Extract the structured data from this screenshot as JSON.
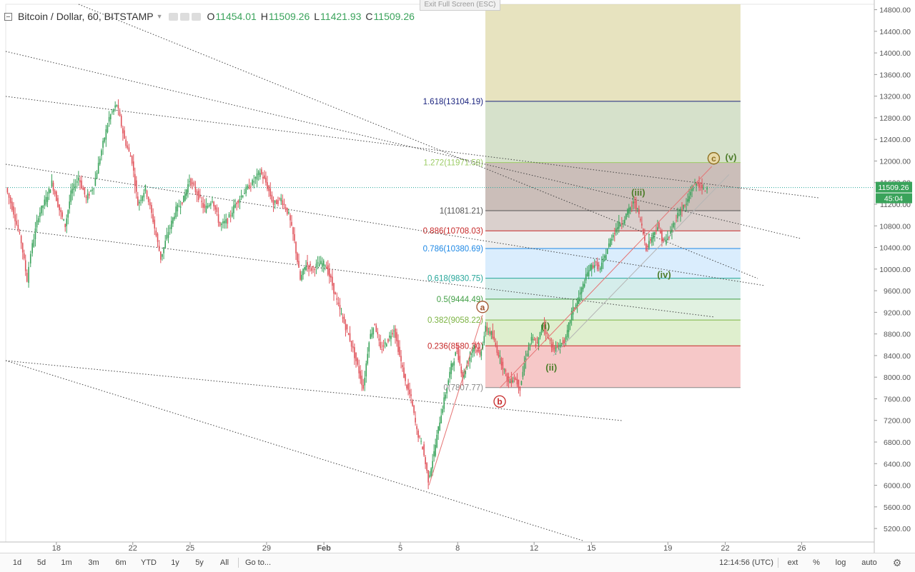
{
  "header": {
    "symbol": "Bitcoin / Dollar, 60, BITSTAMP",
    "open_label": "O",
    "open": "11454.01",
    "high_label": "H",
    "high": "11509.26",
    "low_label": "L",
    "low": "11421.93",
    "close_label": "C",
    "close": "11509.26"
  },
  "exit_fullscreen": "Exit Full Screen (ESC)",
  "price_tag": {
    "price": "11509.26",
    "countdown": "45:04"
  },
  "timeframes": [
    "1d",
    "5d",
    "1m",
    "3m",
    "6m",
    "YTD",
    "1y",
    "5y",
    "All"
  ],
  "goto_label": "Go to...",
  "time": "12:14:56 (UTC)",
  "options": [
    "ext",
    "%",
    "log",
    "auto"
  ],
  "settings_icon": "gear-icon",
  "chart_data": {
    "type": "line",
    "ylim": [
      4950,
      14900
    ],
    "y_ticks": [
      5200,
      5600,
      6000,
      6400,
      6800,
      7200,
      7600,
      8000,
      8400,
      8800,
      9200,
      9600,
      10000,
      10400,
      10800,
      11200,
      11600,
      12000,
      12400,
      12800,
      13200,
      13600,
      14000,
      14400,
      14800
    ],
    "x_ticks": [
      "18",
      "22",
      "25",
      "29",
      "Feb",
      "5",
      "8",
      "12",
      "15",
      "19",
      "22",
      "26"
    ],
    "x_tick_days": [
      0,
      4,
      7,
      11,
      14,
      18,
      21,
      25,
      28,
      32,
      35,
      39
    ],
    "xlim_days": [
      -2.65,
      42.8
    ],
    "series": [
      {
        "values": [
          [
            -2.6,
            11500
          ],
          [
            -2.2,
            11050
          ],
          [
            -1.8,
            10500
          ],
          [
            -1.5,
            9800
          ],
          [
            -1.3,
            10300
          ],
          [
            -0.9,
            11000
          ],
          [
            -0.5,
            11300
          ],
          [
            -0.2,
            11600
          ],
          [
            0.2,
            11100
          ],
          [
            0.5,
            10800
          ],
          [
            0.8,
            11400
          ],
          [
            1.2,
            11700
          ],
          [
            1.6,
            11300
          ],
          [
            2,
            11550
          ],
          [
            2.4,
            12200
          ],
          [
            2.8,
            12800
          ],
          [
            3.2,
            13050
          ],
          [
            3.6,
            12400
          ],
          [
            4,
            12000
          ],
          [
            4.3,
            11200
          ],
          [
            4.7,
            11500
          ],
          [
            5.1,
            10900
          ],
          [
            5.5,
            10200
          ],
          [
            5.9,
            10700
          ],
          [
            6.3,
            11100
          ],
          [
            6.7,
            11300
          ],
          [
            7,
            11650
          ],
          [
            7.4,
            11400
          ],
          [
            7.8,
            11100
          ],
          [
            8.2,
            11300
          ],
          [
            8.6,
            10800
          ],
          [
            9,
            10900
          ],
          [
            9.4,
            11200
          ],
          [
            9.8,
            11400
          ],
          [
            10.3,
            11600
          ],
          [
            10.7,
            11800
          ],
          [
            11,
            11600
          ],
          [
            11.4,
            11200
          ],
          [
            11.8,
            11300
          ],
          [
            12.2,
            11000
          ],
          [
            12.5,
            10500
          ],
          [
            12.8,
            9800
          ],
          [
            13.1,
            10100
          ],
          [
            13.4,
            10000
          ],
          [
            13.8,
            10100
          ],
          [
            14.1,
            10100
          ],
          [
            14.4,
            9800
          ],
          [
            14.8,
            9300
          ],
          [
            15.1,
            9000
          ],
          [
            15.4,
            8700
          ],
          [
            15.8,
            8200
          ],
          [
            16.1,
            7800
          ],
          [
            16.4,
            8700
          ],
          [
            16.7,
            9000
          ],
          [
            17,
            8500
          ],
          [
            17.4,
            8700
          ],
          [
            17.7,
            8900
          ],
          [
            18,
            8400
          ],
          [
            18.3,
            7900
          ],
          [
            18.6,
            7600
          ],
          [
            18.9,
            7000
          ],
          [
            19.2,
            6700
          ],
          [
            19.5,
            6100
          ],
          [
            19.8,
            6600
          ],
          [
            20.1,
            7200
          ],
          [
            20.4,
            7700
          ],
          [
            20.7,
            8200
          ],
          [
            21,
            8500
          ],
          [
            21.3,
            8000
          ],
          [
            21.6,
            8300
          ],
          [
            21.9,
            8600
          ],
          [
            22.2,
            8400
          ],
          [
            22.5,
            8900
          ],
          [
            22.8,
            8800
          ],
          [
            23.1,
            8500
          ],
          [
            23.4,
            8200
          ],
          [
            23.7,
            7900
          ],
          [
            24,
            8000
          ],
          [
            24.3,
            7800
          ],
          [
            24.6,
            8400
          ],
          [
            24.9,
            8700
          ],
          [
            25.2,
            8600
          ],
          [
            25.5,
            9000
          ],
          [
            25.8,
            8700
          ],
          [
            26.1,
            8500
          ],
          [
            26.4,
            8600
          ],
          [
            26.7,
            8700
          ],
          [
            27,
            9200
          ],
          [
            27.3,
            9400
          ],
          [
            27.6,
            9700
          ],
          [
            27.9,
            10000
          ],
          [
            28.2,
            10100
          ],
          [
            28.5,
            10000
          ],
          [
            28.8,
            10300
          ],
          [
            29.1,
            10600
          ],
          [
            29.4,
            10800
          ],
          [
            29.7,
            10900
          ],
          [
            30,
            11100
          ],
          [
            30.3,
            11250
          ],
          [
            30.6,
            10900
          ],
          [
            30.9,
            10400
          ],
          [
            31.2,
            10600
          ],
          [
            31.5,
            10800
          ],
          [
            31.8,
            10500
          ],
          [
            32.1,
            10600
          ],
          [
            32.4,
            10900
          ],
          [
            32.7,
            11100
          ],
          [
            33,
            11200
          ],
          [
            33.3,
            11500
          ],
          [
            33.6,
            11600
          ],
          [
            33.9,
            11450
          ],
          [
            34.1,
            11509
          ]
        ]
      }
    ],
    "fib_levels": [
      {
        "ratio": "0",
        "price": 7807.77,
        "label": "0(7807.77)",
        "color": "#888888",
        "fill": "#ef9a9a"
      },
      {
        "ratio": "0.236",
        "price": 8580.3,
        "label": "0.236(8580.30)",
        "color": "#c62828",
        "fill": "#c5e1a5"
      },
      {
        "ratio": "0.382",
        "price": 9058.22,
        "label": "0.382(9058.22)",
        "color": "#7cb342",
        "fill": "#c8e6c9"
      },
      {
        "ratio": "0.5",
        "price": 9444.49,
        "label": "0.5(9444.49)",
        "color": "#43a047",
        "fill": "#b2dfdb"
      },
      {
        "ratio": "0.618",
        "price": 9830.75,
        "label": "0.618(9830.75)",
        "color": "#26a69a",
        "fill": "#bbdefb"
      },
      {
        "ratio": "0.786",
        "price": 10380.69,
        "label": "0.786(10380.69)",
        "color": "#1e88e5",
        "fill": "#e0e0e0"
      },
      {
        "ratio": "0.886",
        "price": 10708.03,
        "label": "0.886(10708.03)",
        "color": "#c62828",
        "fill": "#bcaaa4"
      },
      {
        "ratio": "1",
        "price": 11081.21,
        "label": "1(11081.21)",
        "color": "#555555",
        "fill": "#a1887f"
      },
      {
        "ratio": "1.272",
        "price": 11971.58,
        "label": "1.272(11971.58)",
        "color": "#9ccc65",
        "fill": "#b5c9a0"
      },
      {
        "ratio": "1.618",
        "price": 13104.19,
        "label": "1.618(13104.19)",
        "color": "#1a237e",
        "fill": "#d4cc8a"
      }
    ],
    "fib_range_days": [
      22.45,
      35.8
    ],
    "fib_top_price": 14900,
    "wave_labels": [
      {
        "text": "a",
        "day": 22.3,
        "price": 9300,
        "circled": true,
        "color": "#a0522d"
      },
      {
        "text": "b",
        "day": 23.2,
        "price": 7550,
        "circled": true,
        "color": "#c62828"
      },
      {
        "text": "c",
        "day": 34.4,
        "price": 12050,
        "circled": true,
        "color": "#8d6e1f"
      },
      {
        "text": "(i)",
        "day": 25.6,
        "price": 8950,
        "circled": false,
        "color": "#4e7d2b"
      },
      {
        "text": "(ii)",
        "day": 25.9,
        "price": 8180,
        "circled": false,
        "color": "#4e7d2b"
      },
      {
        "text": "(iii)",
        "day": 30.45,
        "price": 11420,
        "circled": false,
        "color": "#4e7d2b"
      },
      {
        "text": "(iv)",
        "day": 31.8,
        "price": 9900,
        "circled": false,
        "color": "#4e7d2b"
      },
      {
        "text": "(v)",
        "day": 35.3,
        "price": 12070,
        "circled": false,
        "color": "#4e7d2b"
      }
    ]
  }
}
